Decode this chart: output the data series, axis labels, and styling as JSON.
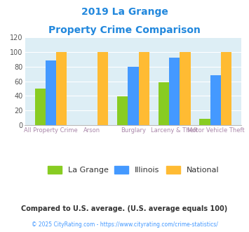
{
  "title_line1": "2019 La Grange",
  "title_line2": "Property Crime Comparison",
  "title_color": "#2288dd",
  "categories_top": [
    "",
    "Arson",
    "",
    "Larceny & Theft",
    ""
  ],
  "categories_bot": [
    "All Property Crime",
    "",
    "Burglary",
    "",
    "Motor Vehicle Theft"
  ],
  "lagrange": [
    50,
    0,
    39,
    59,
    9
  ],
  "illinois": [
    88,
    0,
    80,
    92,
    68
  ],
  "national": [
    100,
    100,
    100,
    100,
    100
  ],
  "lagrange_color": "#88cc22",
  "illinois_color": "#4499ff",
  "national_color": "#ffbb33",
  "ylim": [
    0,
    120
  ],
  "yticks": [
    0,
    20,
    40,
    60,
    80,
    100,
    120
  ],
  "plot_bg": "#ddeef5",
  "xlabel_color": "#aa88aa",
  "legend_labels": [
    "La Grange",
    "Illinois",
    "National"
  ],
  "legend_text_color": "#333333",
  "footnote1": "Compared to U.S. average. (U.S. average equals 100)",
  "footnote2": "© 2025 CityRating.com - https://www.cityrating.com/crime-statistics/",
  "footnote1_color": "#333333",
  "footnote2_color": "#4499ff"
}
